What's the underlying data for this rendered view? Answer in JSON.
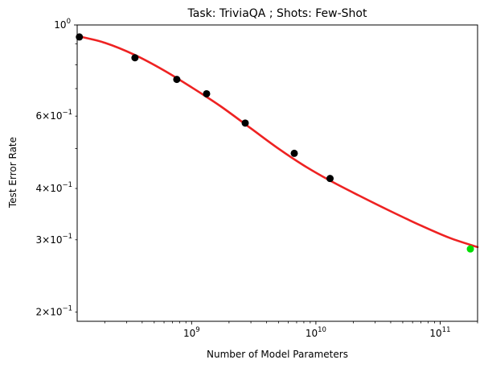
{
  "chart_data": {
    "type": "scatter",
    "title": "Task: TriviaQA ; Shots: Few-Shot",
    "xlabel": "Number of Model Parameters",
    "ylabel": "Test Error Rate",
    "x_scale": "log",
    "y_scale": "log",
    "xlim": [
      120000000.0,
      200000000000.0
    ],
    "ylim": [
      0.19,
      1.0
    ],
    "grid": false,
    "x_major_ticks": [
      {
        "value": 1000000000.0,
        "base": "10",
        "exp": "9"
      },
      {
        "value": 10000000000.0,
        "base": "10",
        "exp": "10"
      },
      {
        "value": 100000000000.0,
        "base": "10",
        "exp": "11"
      }
    ],
    "y_major_ticks": [
      {
        "value": 1.0,
        "base": "10",
        "exp": "0"
      }
    ],
    "y_minor_tick_labels": [
      {
        "value": 0.6,
        "prefix": "6×10",
        "exp": "−1"
      },
      {
        "value": 0.4,
        "prefix": "4×10",
        "exp": "−1"
      },
      {
        "value": 0.3,
        "prefix": "3×10",
        "exp": "−1"
      },
      {
        "value": 0.2,
        "prefix": "2×10",
        "exp": "−1"
      }
    ],
    "series": [
      {
        "role": "observed",
        "marker": "circle",
        "color": "#000000",
        "points": [
          {
            "x": 125000000.0,
            "y": 0.935
          },
          {
            "x": 350000000.0,
            "y": 0.832
          },
          {
            "x": 760000000.0,
            "y": 0.737
          },
          {
            "x": 1320000000.0,
            "y": 0.68
          },
          {
            "x": 2700000000.0,
            "y": 0.577
          },
          {
            "x": 6700000000.0,
            "y": 0.487
          },
          {
            "x": 13000000000.0,
            "y": 0.423
          }
        ]
      },
      {
        "role": "held-out",
        "marker": "circle",
        "color": "#00dd00",
        "points": [
          {
            "x": 175000000000.0,
            "y": 0.285
          }
        ]
      },
      {
        "role": "fit",
        "type": "line",
        "color": "#ee2222",
        "points": [
          {
            "x": 120000000.0,
            "y": 0.94
          },
          {
            "x": 200000000.0,
            "y": 0.905
          },
          {
            "x": 350000000.0,
            "y": 0.845
          },
          {
            "x": 600000000.0,
            "y": 0.775
          },
          {
            "x": 1000000000.0,
            "y": 0.705
          },
          {
            "x": 1700000000.0,
            "y": 0.635
          },
          {
            "x": 3000000000.0,
            "y": 0.56
          },
          {
            "x": 5000000000.0,
            "y": 0.5
          },
          {
            "x": 8000000000.0,
            "y": 0.455
          },
          {
            "x": 13000000000.0,
            "y": 0.418
          },
          {
            "x": 22000000000.0,
            "y": 0.385
          },
          {
            "x": 40000000000.0,
            "y": 0.352
          },
          {
            "x": 70000000000.0,
            "y": 0.325
          },
          {
            "x": 120000000000.0,
            "y": 0.303
          },
          {
            "x": 200000000000.0,
            "y": 0.288
          }
        ]
      }
    ]
  }
}
